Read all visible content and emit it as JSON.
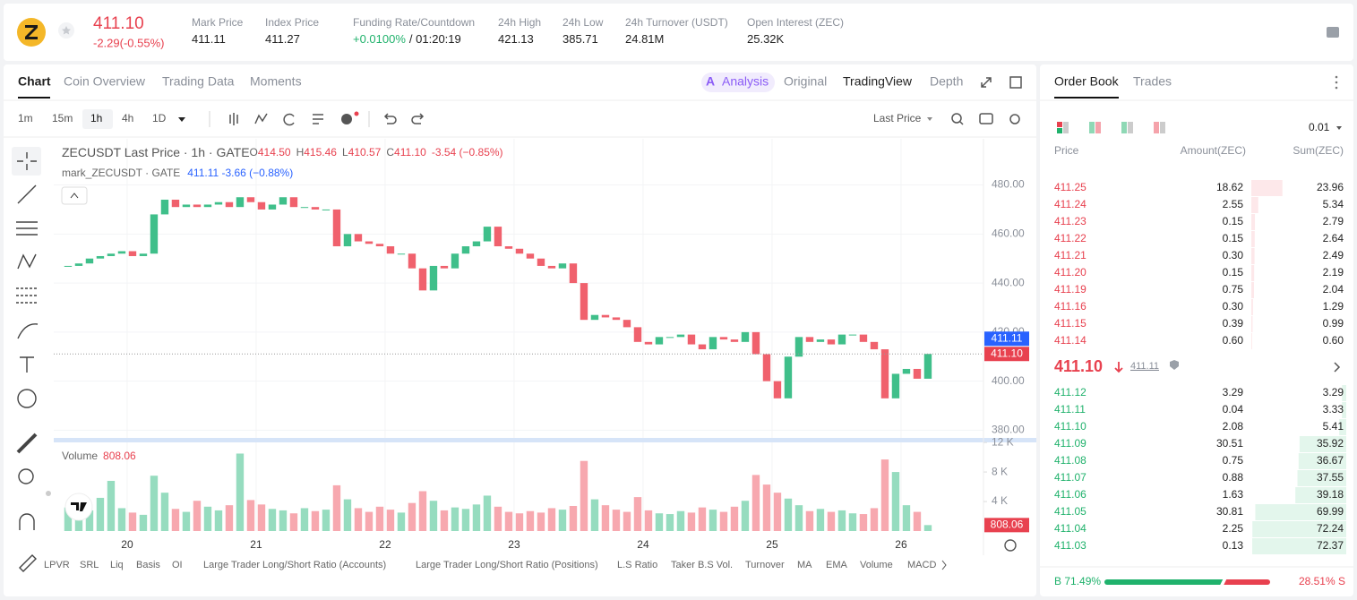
{
  "header": {
    "price": "411.10",
    "change": "-2.29(-0.55%)",
    "stats": [
      {
        "label": "Mark Price",
        "value": "411.11"
      },
      {
        "label": "Index Price",
        "value": "411.27"
      },
      {
        "label": "Funding Rate/Countdown",
        "value": "+0.0100%",
        "extra": "/ 01:20:19"
      },
      {
        "label": "24h High",
        "value": "421.13"
      },
      {
        "label": "24h Low",
        "value": "385.71"
      },
      {
        "label": "24h Turnover (USDT)",
        "value": "24.81M"
      },
      {
        "label": "Open Interest (ZEC)",
        "value": "25.32K"
      }
    ]
  },
  "tabs": [
    "Chart",
    "Coin Overview",
    "Trading Data",
    "Moments"
  ],
  "views": [
    "Analysis",
    "Original",
    "TradingView",
    "Depth"
  ],
  "intervals": [
    "1m",
    "15m",
    "1h",
    "4h",
    "1D"
  ],
  "price_type": "Last Price",
  "chart": {
    "type": "candlestick",
    "legend": "ZECUSDT Last Price · 1h · GATE",
    "ohlc": [
      [
        "O",
        "414.50"
      ],
      [
        "H",
        "415.46"
      ],
      [
        "L",
        "410.57"
      ],
      [
        "C",
        "411.10"
      ]
    ],
    "change": "-3.54 (−0.85%)",
    "mark_legend": "mark_ZECUSDT · GATE",
    "mark_value": "411.11 -3.66 (−0.88%)",
    "volume_legend": "Volume",
    "closes": [
      447,
      448,
      450,
      451,
      452,
      453,
      451,
      452,
      468,
      474,
      471,
      472,
      471,
      472,
      473,
      471,
      475,
      473,
      470,
      472,
      475,
      471,
      471,
      470,
      470,
      455,
      460,
      457,
      456,
      455,
      452,
      452,
      446,
      437,
      447,
      446,
      452,
      455,
      457,
      463,
      455,
      454,
      452,
      450,
      447,
      446,
      448,
      440,
      425,
      427,
      426,
      425,
      422,
      416,
      415,
      418,
      418,
      419,
      415,
      413,
      418,
      417,
      416,
      420,
      411,
      400,
      393,
      410,
      418,
      416,
      417,
      415,
      419,
      419,
      416,
      413,
      393,
      403,
      405,
      401,
      411.1
    ],
    "volumes": [
      3200,
      2100,
      2800,
      4500,
      6800,
      3100,
      2500,
      2200,
      7500,
      5200,
      3000,
      2600,
      4100,
      3300,
      2800,
      3500,
      10500,
      4200,
      3600,
      3000,
      2800,
      2400,
      3100,
      2700,
      2900,
      6200,
      4300,
      3100,
      2600,
      3300,
      2900,
      2500,
      3800,
      5400,
      4100,
      2800,
      3200,
      3000,
      3600,
      4800,
      3300,
      2600,
      2400,
      2700,
      2500,
      3100,
      2900,
      3400,
      9500,
      4300,
      3500,
      2900,
      2600,
      4600,
      2800,
      2400,
      2300,
      2700,
      2500,
      3200,
      2900,
      2600,
      3300,
      4100,
      7600,
      6300,
      5200,
      4400,
      3500,
      2700,
      3000,
      2600,
      2800,
      2400,
      2300,
      3100,
      9700,
      8000,
      3500,
      2600,
      808.06
    ],
    "up_color": "#3fbf8a",
    "down_color": "#f0616d",
    "xlim": [
      -1.33,
      85.17
    ],
    "xticks": [
      {
        "value": 5.5,
        "label": "20"
      },
      {
        "value": 17.5,
        "label": "21"
      },
      {
        "value": 29.5,
        "label": "22"
      },
      {
        "value": 41.5,
        "label": "23"
      },
      {
        "value": 53.5,
        "label": "24"
      },
      {
        "value": 65.5,
        "label": "25"
      },
      {
        "value": 77.5,
        "label": "26"
      }
    ],
    "ylim": [
      376.5,
      497
    ],
    "yticks": [
      {
        "value": 380,
        "label": "380.00"
      },
      {
        "value": 400,
        "label": "400.00"
      },
      {
        "value": 420,
        "label": "420.00"
      },
      {
        "value": 440,
        "label": "440.00"
      },
      {
        "value": 460,
        "label": "460.00"
      },
      {
        "value": 480,
        "label": "480.00"
      }
    ],
    "vlim": [
      0,
      12500
    ],
    "vticks": [
      {
        "value": 4000,
        "label": "4 K"
      },
      {
        "value": 8000,
        "label": "8 K"
      },
      {
        "value": 12000,
        "label": "12 K"
      }
    ],
    "mark_tag": "411.11",
    "last_tag": "411.10",
    "grid": true
  },
  "indicators": [
    "LPVR",
    "SRL",
    "Liq",
    "Basis",
    "OI",
    "Large Trader Long/Short Ratio (Accounts)",
    "Large Trader Long/Short Ratio (Positions)",
    "L.S Ratio",
    "Taker B.S Vol.",
    "Turnover",
    "MA",
    "EMA",
    "Volume",
    "MACD"
  ],
  "order_book": {
    "tabs": [
      "Order Book",
      "Trades"
    ],
    "tick_size": "0.01",
    "columns": [
      "Price",
      "Amount(ZEC)",
      "Sum(ZEC)"
    ],
    "asks": [
      [
        "411.25",
        "18.62",
        {
          "value": 23.96,
          "label": "23.96"
        }
      ],
      [
        "411.24",
        "2.55",
        {
          "value": 5.34,
          "label": "5.34"
        }
      ],
      [
        "411.23",
        "0.15",
        {
          "value": 2.79,
          "label": "2.79"
        }
      ],
      [
        "411.22",
        "0.15",
        {
          "value": 2.64,
          "label": "2.64"
        }
      ],
      [
        "411.21",
        "0.30",
        {
          "value": 2.49,
          "label": "2.49"
        }
      ],
      [
        "411.20",
        "0.15",
        {
          "value": 2.19,
          "label": "2.19"
        }
      ],
      [
        "411.19",
        "0.75",
        {
          "value": 2.04,
          "label": "2.04"
        }
      ],
      [
        "411.16",
        "0.30",
        {
          "value": 1.29,
          "label": "1.29"
        }
      ],
      [
        "411.15",
        "0.39",
        {
          "value": 0.99,
          "label": "0.99"
        }
      ],
      [
        "411.14",
        "0.60",
        {
          "value": 0.6,
          "label": "0.60"
        }
      ]
    ],
    "mid_price": "411.10",
    "mark_price": "411.11",
    "bids": [
      [
        "411.12",
        "3.29",
        {
          "value": 3.29,
          "label": "3.29"
        }
      ],
      [
        "411.11",
        "0.04",
        {
          "value": 3.33,
          "label": "3.33"
        }
      ],
      [
        "411.10",
        "2.08",
        {
          "value": 5.41,
          "label": "5.41"
        }
      ],
      [
        "411.09",
        "30.51",
        {
          "value": 35.92,
          "label": "35.92"
        }
      ],
      [
        "411.08",
        "0.75",
        {
          "value": 36.67,
          "label": "36.67"
        }
      ],
      [
        "411.07",
        "0.88",
        {
          "value": 37.55,
          "label": "37.55"
        }
      ],
      [
        "411.06",
        "1.63",
        {
          "value": 39.18,
          "label": "39.18"
        }
      ],
      [
        "411.05",
        "30.81",
        {
          "value": 69.99,
          "label": "69.99"
        }
      ],
      [
        "411.04",
        "2.25",
        {
          "value": 72.24,
          "label": "72.24"
        }
      ],
      [
        "411.03",
        "0.13",
        {
          "value": 72.37,
          "label": "72.37"
        }
      ]
    ],
    "ratio": {
      "buy_letter": "B",
      "buy": {
        "value": 71.49,
        "label": "71.49%"
      },
      "sell": {
        "value": 28.51,
        "label": "28.51%"
      },
      "sell_letter": "S"
    }
  }
}
